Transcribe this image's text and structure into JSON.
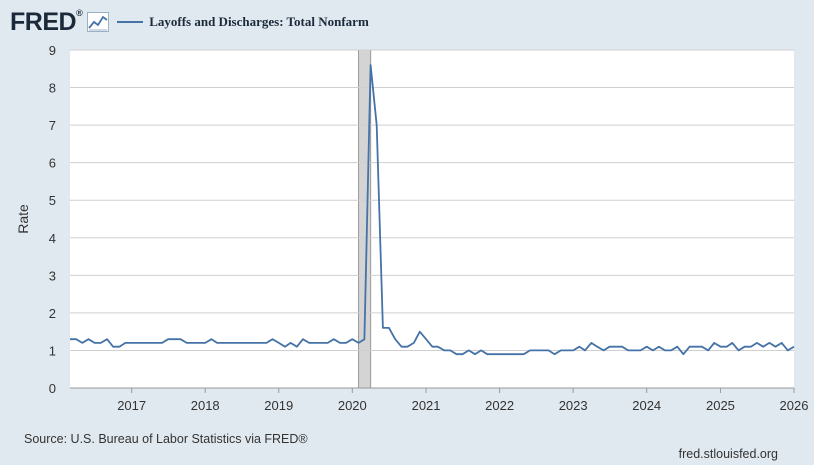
{
  "header": {
    "logo": "FRED",
    "logo_mark": "®",
    "legend_label": "Layoffs and Discharges: Total Nonfarm",
    "line_color": "#4572a7"
  },
  "footer": {
    "source": "Source: U.S. Bureau of Labor Statistics via FRED®",
    "url": "fred.stlouisfed.org"
  },
  "chart_data": {
    "type": "line",
    "title": "Layoffs and Discharges: Total Nonfarm",
    "ylabel": "Rate",
    "xlabel": "",
    "ylim": [
      0,
      9
    ],
    "yticks": [
      0,
      1,
      2,
      3,
      4,
      5,
      6,
      7,
      8,
      9
    ],
    "xlim": [
      "2016-03-01",
      "2026-01-01"
    ],
    "xticks": [
      "2017",
      "2018",
      "2019",
      "2020",
      "2021",
      "2022",
      "2023",
      "2024",
      "2025",
      "2026"
    ],
    "grid": true,
    "recession_shading": [
      "2020-02-01",
      "2020-04-01"
    ],
    "series": [
      {
        "name": "Layoffs and Discharges: Total Nonfarm",
        "color": "#4572a7",
        "points": [
          [
            "2016-03-01",
            1.3
          ],
          [
            "2016-04-01",
            1.3
          ],
          [
            "2016-05-01",
            1.2
          ],
          [
            "2016-06-01",
            1.3
          ],
          [
            "2016-07-01",
            1.2
          ],
          [
            "2016-08-01",
            1.2
          ],
          [
            "2016-09-01",
            1.3
          ],
          [
            "2016-10-01",
            1.1
          ],
          [
            "2016-11-01",
            1.1
          ],
          [
            "2016-12-01",
            1.2
          ],
          [
            "2017-01-01",
            1.2
          ],
          [
            "2017-02-01",
            1.2
          ],
          [
            "2017-03-01",
            1.2
          ],
          [
            "2017-04-01",
            1.2
          ],
          [
            "2017-05-01",
            1.2
          ],
          [
            "2017-06-01",
            1.2
          ],
          [
            "2017-07-01",
            1.3
          ],
          [
            "2017-08-01",
            1.3
          ],
          [
            "2017-09-01",
            1.3
          ],
          [
            "2017-10-01",
            1.2
          ],
          [
            "2017-11-01",
            1.2
          ],
          [
            "2017-12-01",
            1.2
          ],
          [
            "2018-01-01",
            1.2
          ],
          [
            "2018-02-01",
            1.3
          ],
          [
            "2018-03-01",
            1.2
          ],
          [
            "2018-04-01",
            1.2
          ],
          [
            "2018-05-01",
            1.2
          ],
          [
            "2018-06-01",
            1.2
          ],
          [
            "2018-07-01",
            1.2
          ],
          [
            "2018-08-01",
            1.2
          ],
          [
            "2018-09-01",
            1.2
          ],
          [
            "2018-10-01",
            1.2
          ],
          [
            "2018-11-01",
            1.2
          ],
          [
            "2018-12-01",
            1.3
          ],
          [
            "2019-01-01",
            1.2
          ],
          [
            "2019-02-01",
            1.1
          ],
          [
            "2019-03-01",
            1.2
          ],
          [
            "2019-04-01",
            1.1
          ],
          [
            "2019-05-01",
            1.3
          ],
          [
            "2019-06-01",
            1.2
          ],
          [
            "2019-07-01",
            1.2
          ],
          [
            "2019-08-01",
            1.2
          ],
          [
            "2019-09-01",
            1.2
          ],
          [
            "2019-10-01",
            1.3
          ],
          [
            "2019-11-01",
            1.2
          ],
          [
            "2019-12-01",
            1.2
          ],
          [
            "2020-01-01",
            1.3
          ],
          [
            "2020-02-01",
            1.2
          ],
          [
            "2020-03-01",
            1.3
          ],
          [
            "2020-04-01",
            8.6
          ],
          [
            "2020-05-01",
            7.0
          ],
          [
            "2020-06-01",
            1.6
          ],
          [
            "2020-07-01",
            1.6
          ],
          [
            "2020-08-01",
            1.3
          ],
          [
            "2020-09-01",
            1.1
          ],
          [
            "2020-10-01",
            1.1
          ],
          [
            "2020-11-01",
            1.2
          ],
          [
            "2020-12-01",
            1.5
          ],
          [
            "2021-01-01",
            1.3
          ],
          [
            "2021-02-01",
            1.1
          ],
          [
            "2021-03-01",
            1.1
          ],
          [
            "2021-04-01",
            1.0
          ],
          [
            "2021-05-01",
            1.0
          ],
          [
            "2021-06-01",
            0.9
          ],
          [
            "2021-07-01",
            0.9
          ],
          [
            "2021-08-01",
            1.0
          ],
          [
            "2021-09-01",
            0.9
          ],
          [
            "2021-10-01",
            1.0
          ],
          [
            "2021-11-01",
            0.9
          ],
          [
            "2021-12-01",
            0.9
          ],
          [
            "2022-01-01",
            0.9
          ],
          [
            "2022-02-01",
            0.9
          ],
          [
            "2022-03-01",
            0.9
          ],
          [
            "2022-04-01",
            0.9
          ],
          [
            "2022-05-01",
            0.9
          ],
          [
            "2022-06-01",
            1.0
          ],
          [
            "2022-07-01",
            1.0
          ],
          [
            "2022-08-01",
            1.0
          ],
          [
            "2022-09-01",
            1.0
          ],
          [
            "2022-10-01",
            0.9
          ],
          [
            "2022-11-01",
            1.0
          ],
          [
            "2022-12-01",
            1.0
          ],
          [
            "2023-01-01",
            1.0
          ],
          [
            "2023-02-01",
            1.1
          ],
          [
            "2023-03-01",
            1.0
          ],
          [
            "2023-04-01",
            1.2
          ],
          [
            "2023-05-01",
            1.1
          ],
          [
            "2023-06-01",
            1.0
          ],
          [
            "2023-07-01",
            1.1
          ],
          [
            "2023-08-01",
            1.1
          ],
          [
            "2023-09-01",
            1.1
          ],
          [
            "2023-10-01",
            1.0
          ],
          [
            "2023-11-01",
            1.0
          ],
          [
            "2023-12-01",
            1.0
          ],
          [
            "2024-01-01",
            1.1
          ],
          [
            "2024-02-01",
            1.0
          ],
          [
            "2024-03-01",
            1.1
          ],
          [
            "2024-04-01",
            1.0
          ],
          [
            "2024-05-01",
            1.0
          ],
          [
            "2024-06-01",
            1.1
          ],
          [
            "2024-07-01",
            0.9
          ],
          [
            "2024-08-01",
            1.1
          ],
          [
            "2024-09-01",
            1.1
          ],
          [
            "2024-10-01",
            1.1
          ],
          [
            "2024-11-01",
            1.0
          ],
          [
            "2024-12-01",
            1.2
          ],
          [
            "2025-01-01",
            1.1
          ],
          [
            "2025-02-01",
            1.1
          ],
          [
            "2025-03-01",
            1.2
          ],
          [
            "2025-04-01",
            1.0
          ],
          [
            "2025-05-01",
            1.1
          ],
          [
            "2025-06-01",
            1.1
          ],
          [
            "2025-07-01",
            1.2
          ],
          [
            "2025-08-01",
            1.1
          ],
          [
            "2025-09-01",
            1.2
          ],
          [
            "2025-10-01",
            1.1
          ],
          [
            "2025-11-01",
            1.2
          ],
          [
            "2025-12-01",
            1.0
          ],
          [
            "2026-01-01",
            1.1
          ]
        ]
      }
    ]
  }
}
